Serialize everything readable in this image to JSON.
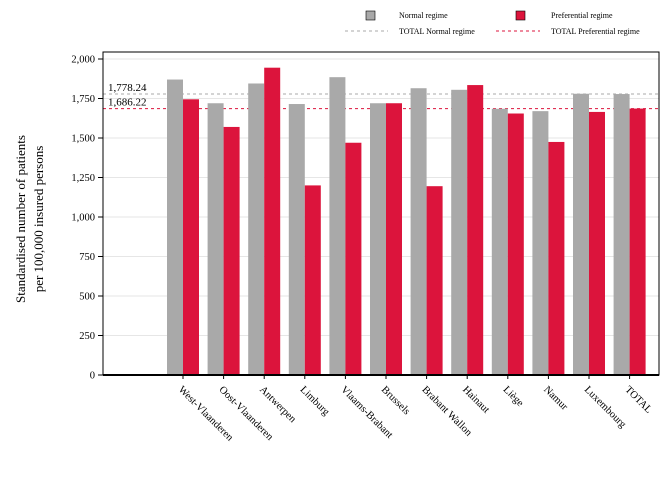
{
  "chart_data": {
    "type": "bar",
    "title": "",
    "xlabel": "",
    "ylabel_lines": [
      "Standardised number of patients",
      "per 100,000 insured persons"
    ],
    "categories": [
      "West-Vlaanderen",
      "Oost-Vlaanderen",
      "Antwerpen",
      "Limburg",
      "Vlaams-Brabant",
      "Brussels",
      "Brabant Wallon",
      "Hainaut",
      "Liège",
      "Namur",
      "Luxembourg",
      "TOTAL"
    ],
    "series": [
      {
        "name": "Normal regime",
        "color": "#a9a9a9",
        "values": [
          1870,
          1720,
          1845,
          1715,
          1885,
          1720,
          1815,
          1805,
          1685,
          1670,
          1780,
          1778.24
        ]
      },
      {
        "name": "Preferential regime",
        "color": "#dc143c",
        "values": [
          1745,
          1570,
          1945,
          1200,
          1470,
          1720,
          1195,
          1835,
          1655,
          1475,
          1665,
          1686.22
        ]
      }
    ],
    "reference_lines": [
      {
        "name": "TOTAL Normal regime",
        "value": 1778.24,
        "label": "1,778.24",
        "color": "#a9a9a9"
      },
      {
        "name": "TOTAL Preferential regime",
        "value": 1686.22,
        "label": "1,686.22",
        "color": "#dc143c"
      }
    ],
    "ylim": [
      0,
      2000
    ],
    "yticks": [
      0,
      250,
      500,
      750,
      1000,
      1250,
      1500,
      1750,
      2000
    ],
    "ytick_labels": [
      "0",
      "250",
      "500",
      "750",
      "1,000",
      "1,250",
      "1,500",
      "1,750",
      "2,000"
    ],
    "grid": true,
    "legend_position": "top"
  }
}
